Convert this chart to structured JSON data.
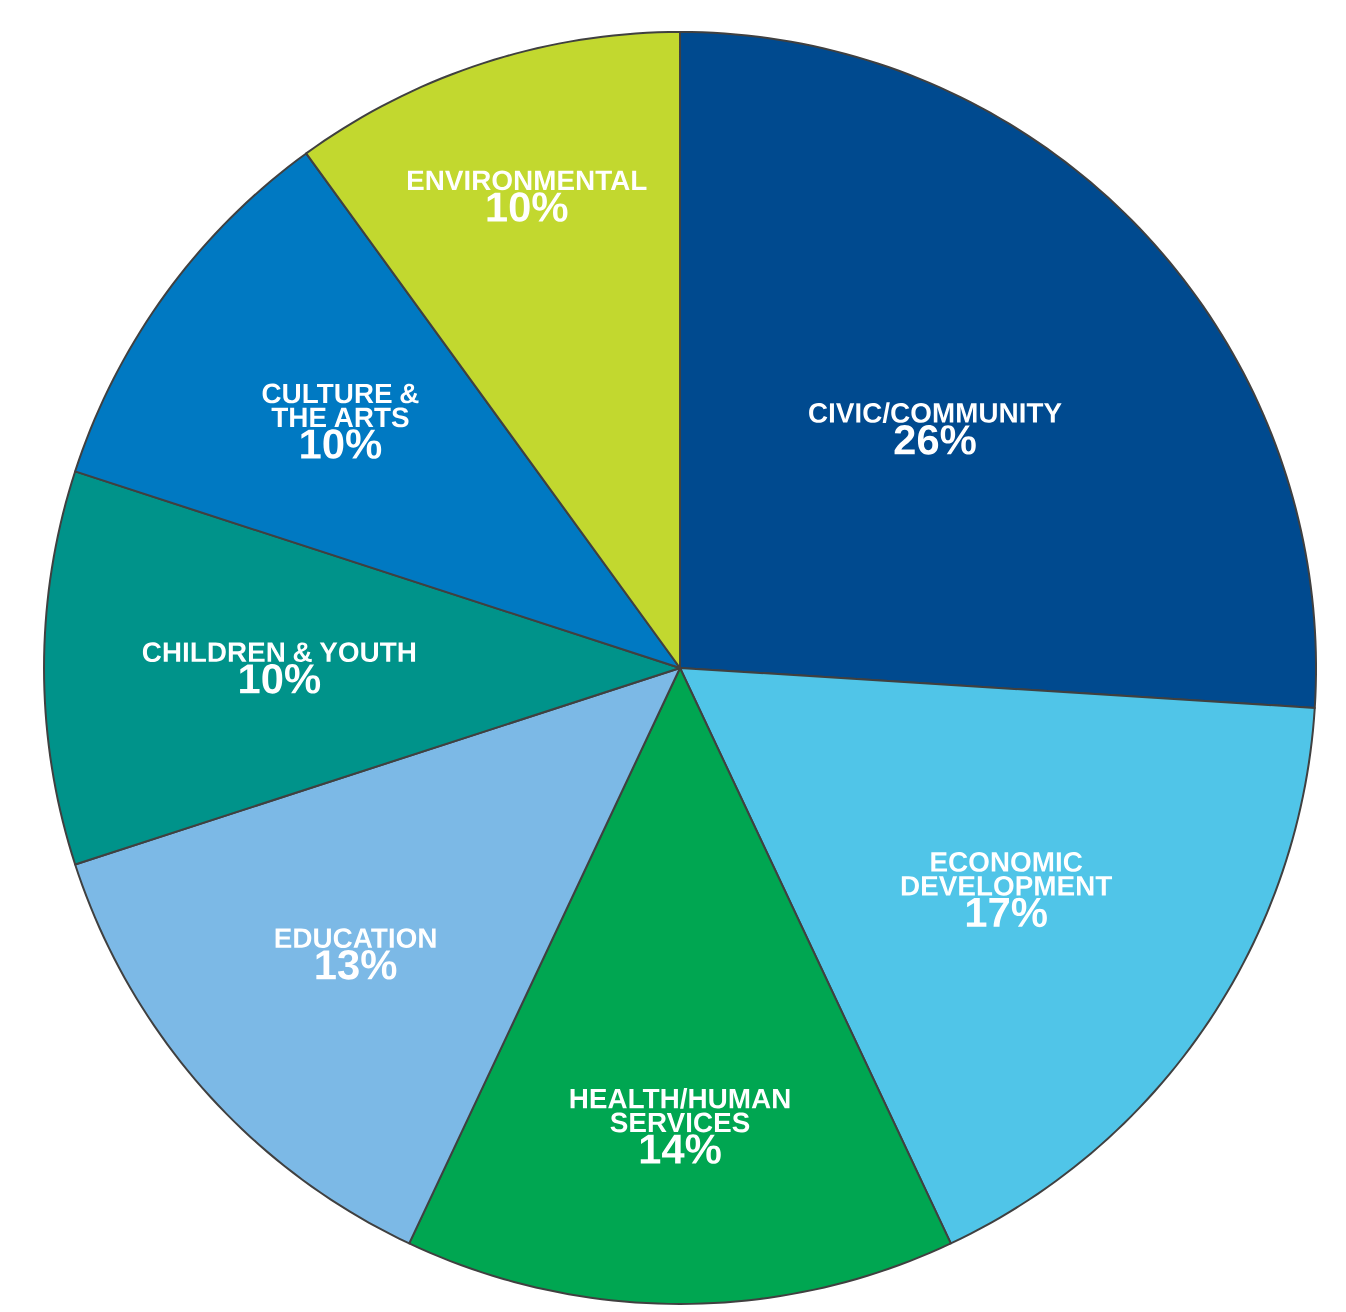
{
  "chart_data": {
    "type": "pie",
    "categories": [
      "CIVIC/COMMUNITY",
      "ECONOMIC DEVELOPMENT",
      "HEALTH/HUMAN SERVICES",
      "EDUCATION",
      "CHILDREN & YOUTH",
      "CULTURE & THE ARTS",
      "ENVIRONMENTAL"
    ],
    "values": [
      26,
      17,
      14,
      13,
      10,
      10,
      10
    ],
    "colors": [
      "#004a8f",
      "#50c5e8",
      "#00a651",
      "#7cb9e6",
      "#00938a",
      "#0079c2",
      "#c2d82f"
    ],
    "value_labels": [
      "26%",
      "17%",
      "14%",
      "13%",
      "10%",
      "10%",
      "10%"
    ]
  }
}
